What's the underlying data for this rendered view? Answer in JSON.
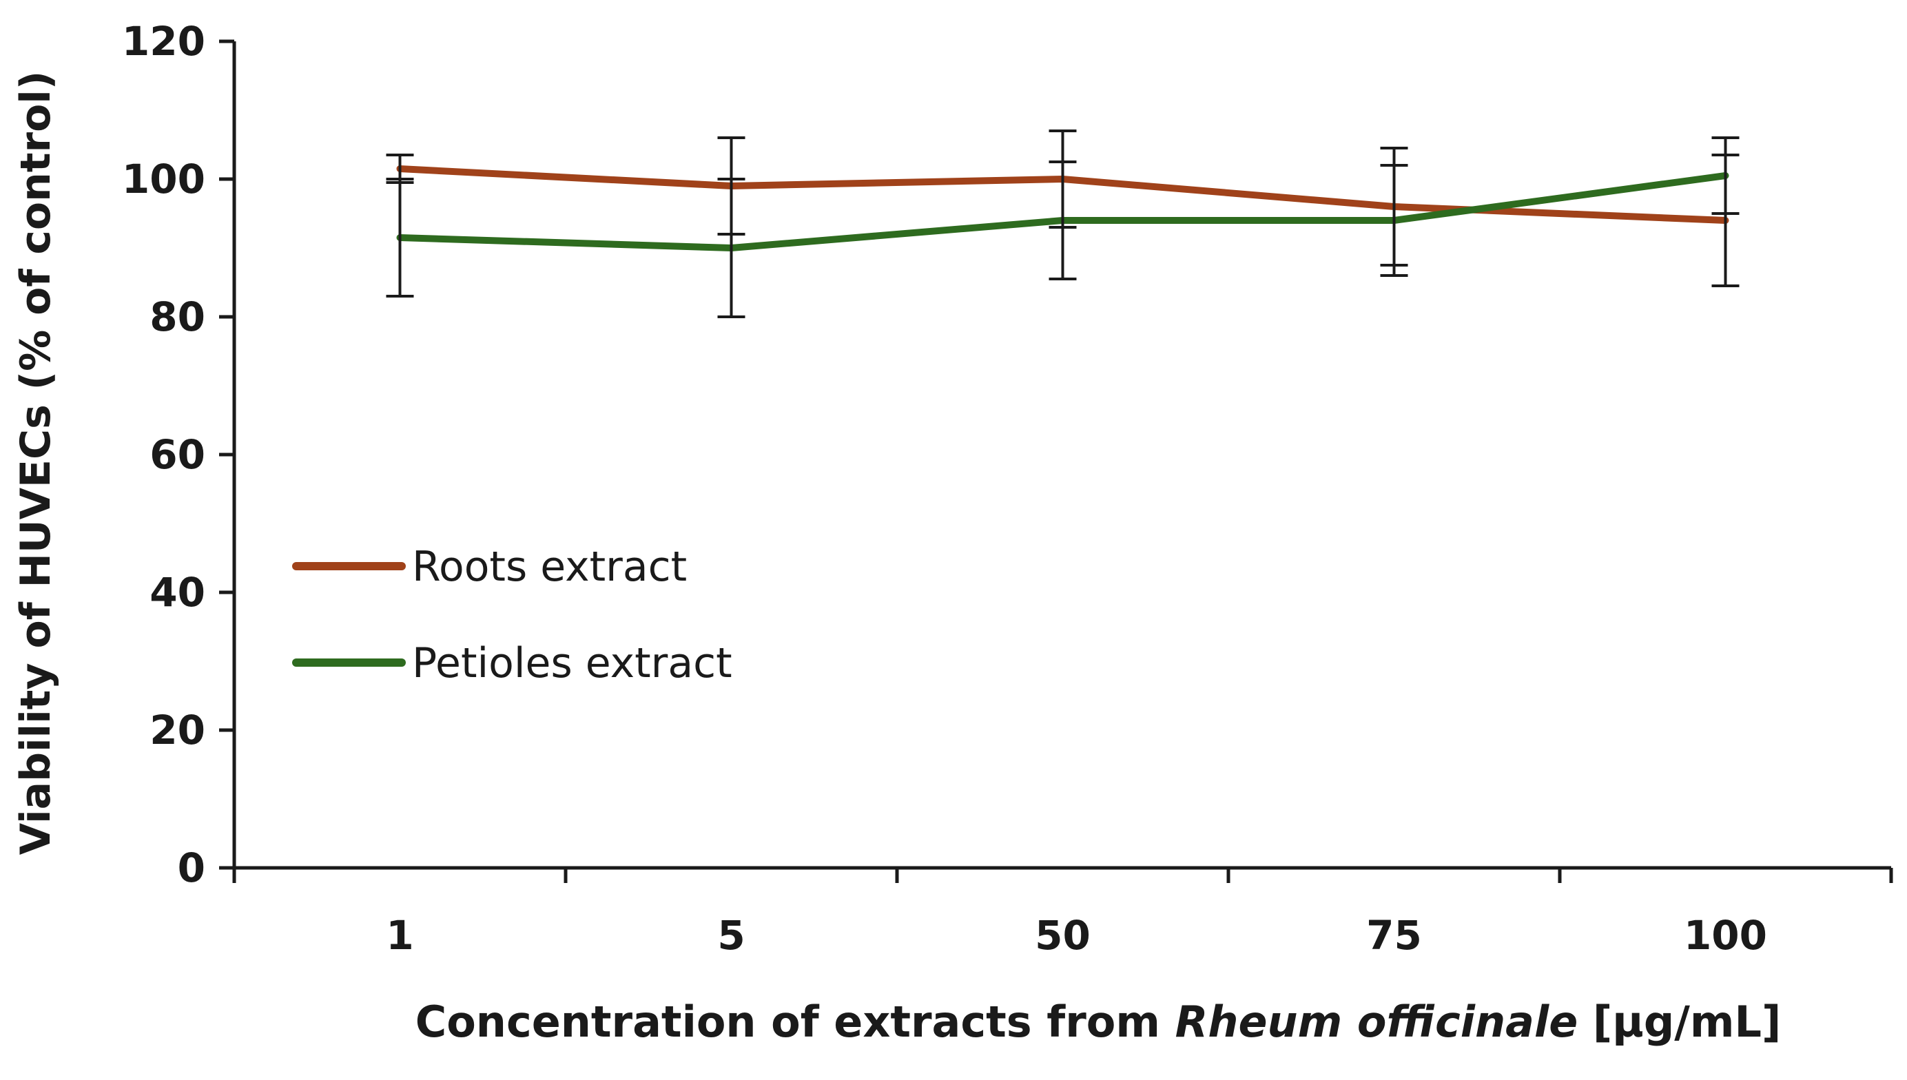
{
  "chart_data": {
    "type": "line",
    "title": "",
    "xlabel_parts": [
      "Concentration of extracts from ",
      "Rheum officinale",
      " [µg/mL]"
    ],
    "ylabel": "Viability of HUVECs (% of control)",
    "categories": [
      "1",
      "5",
      "50",
      "75",
      "100"
    ],
    "ylim": [
      0,
      120
    ],
    "yticks": [
      "0",
      "20",
      "40",
      "60",
      "80",
      "100",
      "120"
    ],
    "grid": false,
    "legend_position": "center-left",
    "series": [
      {
        "name": "Roots extract",
        "color": "#a0421a",
        "values": [
          101.5,
          99,
          100,
          96,
          94
        ],
        "errors": [
          2,
          7,
          7,
          8.5,
          9.5
        ]
      },
      {
        "name": "Petioles extract",
        "color": "#2e6b1f",
        "values": [
          91.5,
          90,
          94,
          94,
          100.5
        ],
        "errors": [
          8.5,
          10,
          8.5,
          8,
          5.5
        ]
      }
    ]
  }
}
